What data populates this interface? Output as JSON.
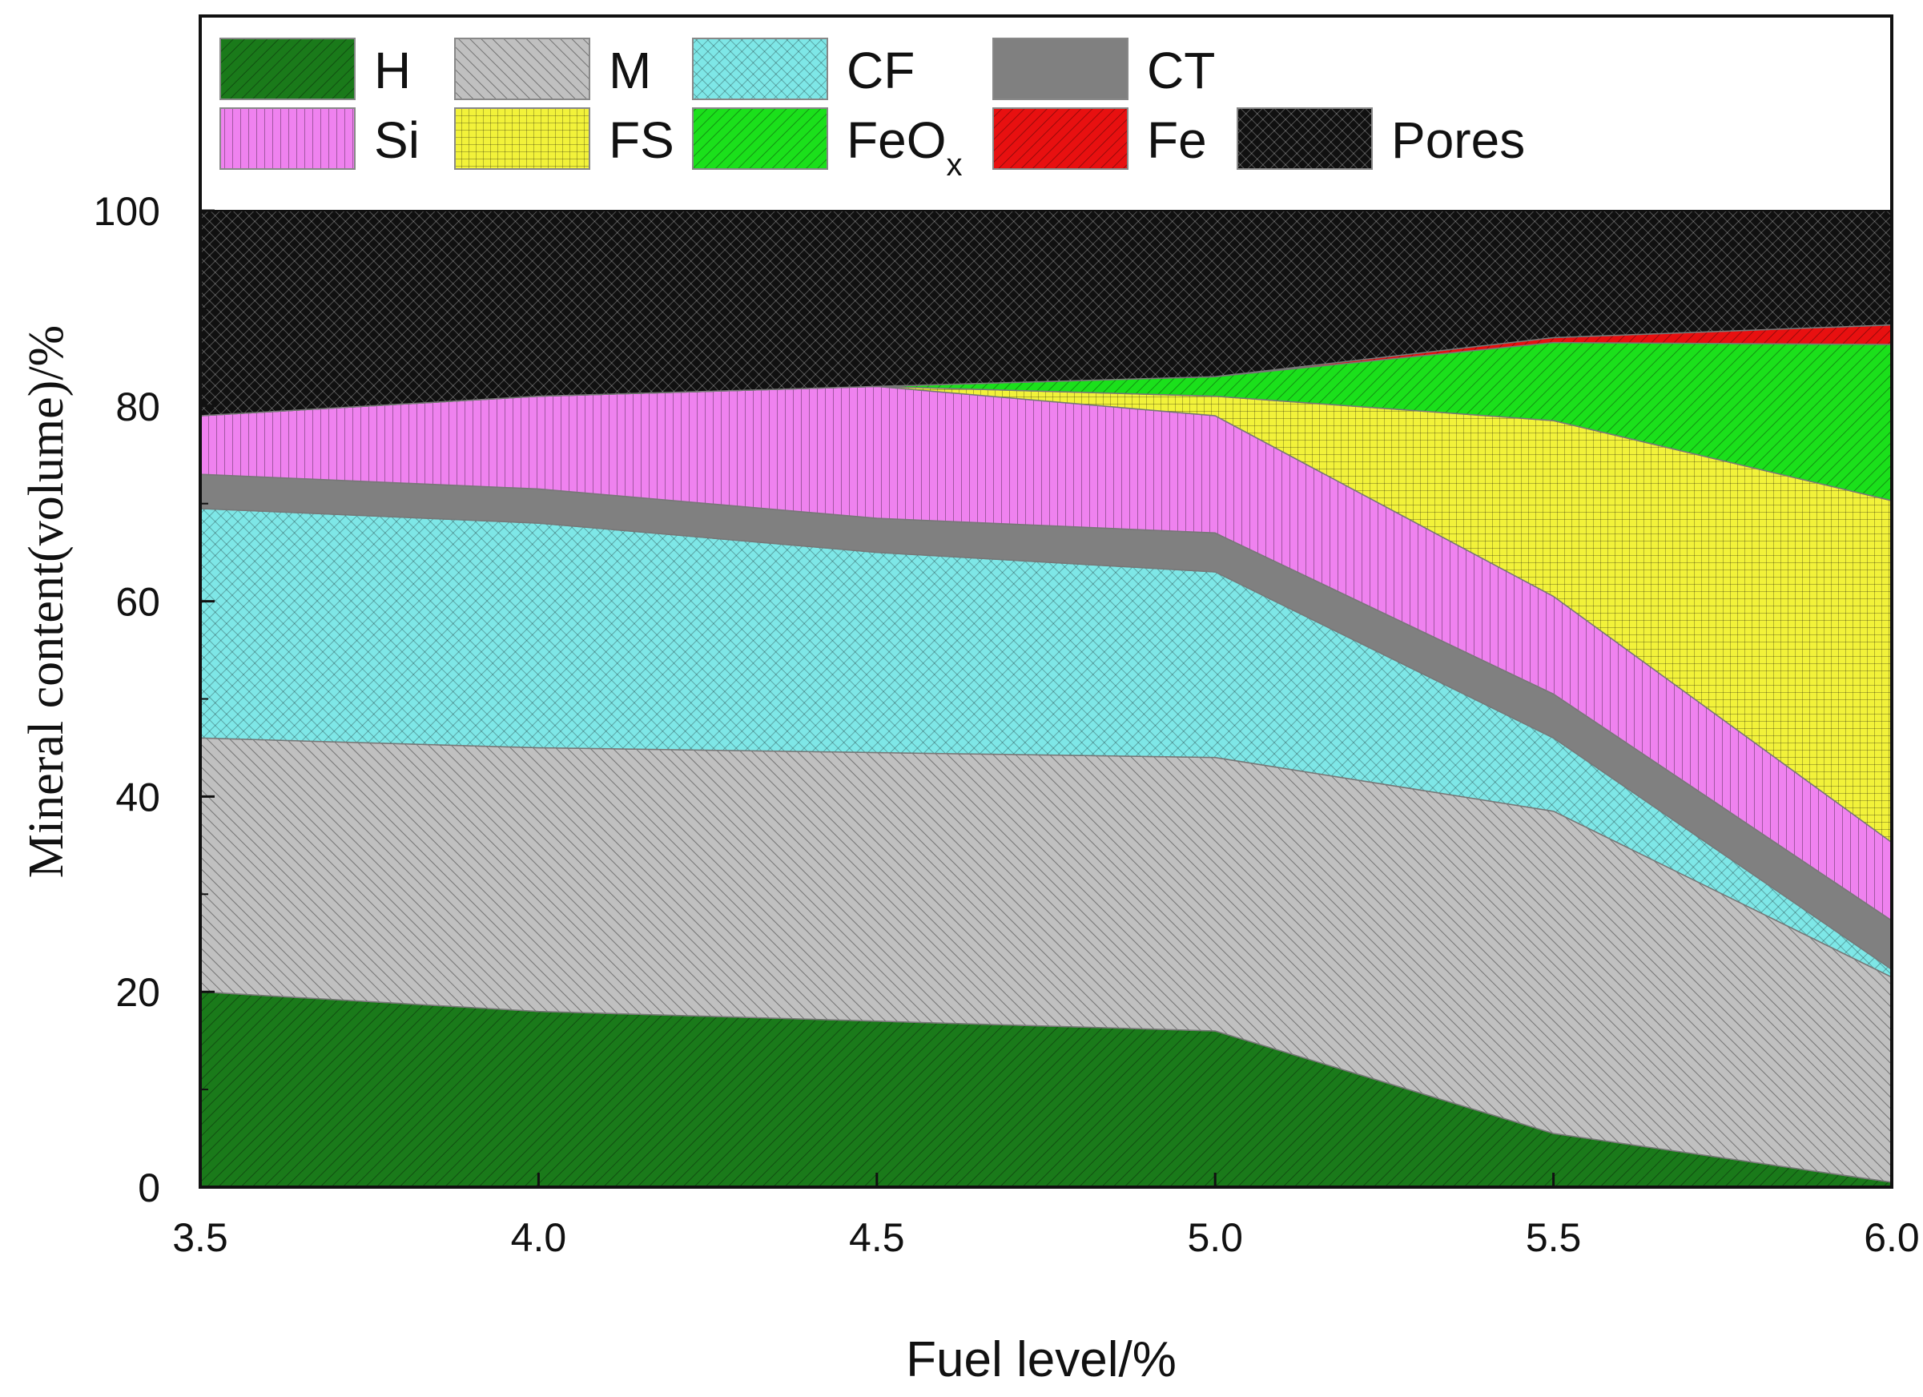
{
  "chart_data": {
    "type": "area",
    "stacked": true,
    "title": "",
    "xlabel": "Fuel level/%",
    "ylabel": "Mineral content(volume)/%",
    "x": [
      3.5,
      4.0,
      4.5,
      5.0,
      5.5,
      6.0
    ],
    "xticks": [
      "3.5",
      "4.0",
      "4.5",
      "5.0",
      "5.5",
      "6.0"
    ],
    "yticks": [
      "0",
      "20",
      "40",
      "60",
      "80",
      "100"
    ],
    "xlim": [
      3.5,
      6.0
    ],
    "ylim": [
      0,
      120
    ],
    "legend_position": "top",
    "series": [
      {
        "key": "H",
        "name": "H",
        "color": "#1a7a1a",
        "hatch": "diag-right",
        "values": [
          20,
          18,
          17,
          16,
          5.5,
          0.5
        ]
      },
      {
        "key": "M",
        "name": "M",
        "color": "#c0c0c0",
        "hatch": "diag-left",
        "values": [
          26,
          27,
          27.5,
          28,
          33,
          21
        ]
      },
      {
        "key": "CF",
        "name": "CF",
        "color": "#7ee7e7",
        "hatch": "cross",
        "values": [
          23.5,
          23,
          20.5,
          19,
          7.5,
          0.8
        ]
      },
      {
        "key": "CT",
        "name": "CT",
        "color": "#808080",
        "hatch": "solid",
        "values": [
          3.5,
          3.5,
          3.5,
          4,
          4.5,
          5
        ]
      },
      {
        "key": "Si",
        "name": "Si",
        "color": "#ef82ef",
        "hatch": "vertical",
        "values": [
          6,
          9.5,
          13.5,
          12,
          10,
          8
        ]
      },
      {
        "key": "FS",
        "name": "FS",
        "color": "#f2f23a",
        "hatch": "grid",
        "values": [
          0,
          0,
          0,
          2,
          18,
          35
        ]
      },
      {
        "key": "FeOx",
        "name": "FeO",
        "sub": "x",
        "color": "#1be01b",
        "hatch": "diag-right",
        "values": [
          0,
          0,
          0,
          2,
          8,
          16
        ]
      },
      {
        "key": "Fe",
        "name": "Fe",
        "color": "#e81010",
        "hatch": "diag-right",
        "values": [
          0,
          0,
          0,
          0,
          0.5,
          2
        ]
      },
      {
        "key": "Pores",
        "name": "Pores",
        "color": "#101010",
        "hatch": "cross-dark",
        "values": [
          21,
          19,
          18,
          17,
          13,
          11.7
        ]
      }
    ]
  }
}
